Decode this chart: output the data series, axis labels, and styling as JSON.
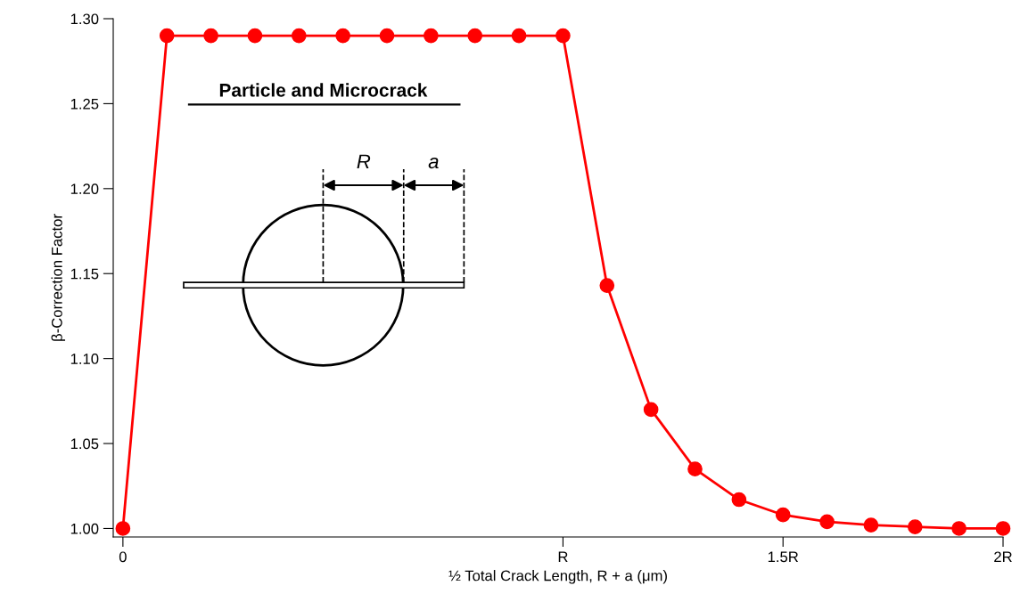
{
  "chart_data": {
    "type": "line",
    "xlabel": "½ Total Crack Length, R + a (μm)",
    "ylabel": "β-Correction Factor",
    "x": [
      0,
      0.1,
      0.2,
      0.3,
      0.4,
      0.5,
      0.6,
      0.7,
      0.8,
      0.9,
      1.0,
      1.1,
      1.2,
      1.3,
      1.4,
      1.5,
      1.6,
      1.7,
      1.8,
      1.9,
      2.0
    ],
    "series": [
      {
        "color": "#ff0000",
        "values": [
          1.0,
          1.29,
          1.29,
          1.29,
          1.29,
          1.29,
          1.29,
          1.29,
          1.29,
          1.29,
          1.29,
          1.143,
          1.07,
          1.035,
          1.017,
          1.008,
          1.004,
          1.002,
          1.001,
          1.0,
          1.0
        ]
      }
    ],
    "xlim": [
      -0.022,
      2.0
    ],
    "ylim": [
      0.995,
      1.3
    ],
    "xticks": [
      0,
      {
        "value": 1,
        "label": "R"
      },
      {
        "value": 1.5,
        "label": "1.5R"
      },
      {
        "value": 2,
        "label": "2R"
      }
    ],
    "yticks": [
      {
        "value": 1.0,
        "label": "1.00"
      },
      {
        "value": 1.05,
        "label": "1.05"
      },
      {
        "value": 1.1,
        "label": "1.10"
      },
      {
        "value": 1.15,
        "label": "1.15"
      },
      {
        "value": 1.2,
        "label": "1.20"
      },
      {
        "value": 1.25,
        "label": "1.25"
      },
      {
        "value": 1.3,
        "label": "1.30"
      }
    ],
    "annotations": [
      "Particle and Microcrack",
      "R",
      "a"
    ],
    "marker": "circle",
    "line_style": "solid",
    "grid": false,
    "legend": false
  }
}
